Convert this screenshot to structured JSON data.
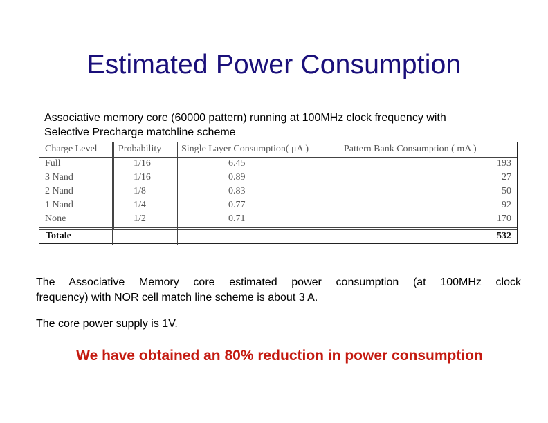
{
  "slide": {
    "title": "Estimated Power Consumption",
    "intro_line1": "Associative memory core (60000 pattern) running at 100MHz clock frequency with",
    "intro_line2": "Selective Precharge matchline scheme",
    "body_line1": "The Associative Memory core estimated power consumption (at 100MHz clock",
    "body_line2": "frequency) with NOR cell match line scheme is about 3 A.",
    "supply_text": "The core power supply is 1V.",
    "conclusion": "We have obtained an 80% reduction in power consumption"
  },
  "table": {
    "headers": [
      "Charge Level",
      "Probability",
      "Single Layer Consumption( μA )",
      "Pattern Bank Consumption ( mA )"
    ],
    "rows": [
      [
        "Full",
        "1/16",
        "6.45",
        "193"
      ],
      [
        "3 Nand",
        "1/16",
        "0.89",
        "27"
      ],
      [
        "2 Nand",
        "1/8",
        "0.83",
        "50"
      ],
      [
        "1 Nand",
        "1/4",
        "0.77",
        "92"
      ],
      [
        "None",
        "1/2",
        "0.71",
        "170"
      ]
    ],
    "total_label": "Totale",
    "total_value": "532"
  }
}
